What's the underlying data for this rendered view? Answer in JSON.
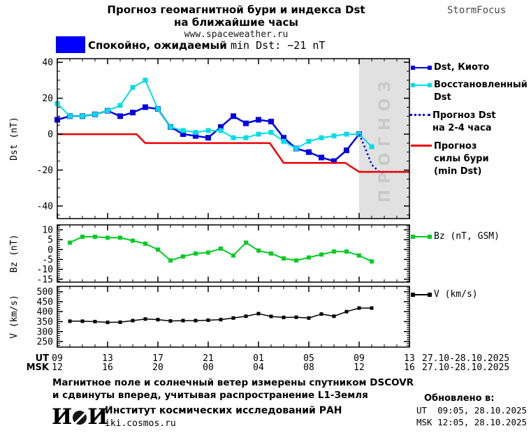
{
  "header": {
    "title_line1": "Прогноз геомагнитной бури и индекса Dst",
    "title_line2": "на ближайшие часы",
    "title_line3": "www.spaceweather.ru",
    "brand": "StormFocus",
    "status_bold": "Спокойно, ожидаемый ",
    "status_rest": "min Dst: −21 nT",
    "status_color": "#0000ff"
  },
  "legend": {
    "dst_kyoto": "Dst, Киото",
    "restored_line1": "Восстановленный",
    "restored_line2": "Dst",
    "forecast_line1": "Прогноз Dst",
    "forecast_line2": "на 2-4 часа",
    "storm_line1": "Прогноз",
    "storm_line2": "силы бури",
    "storm_line3": "(min Dst)",
    "bz": "Bz (nT, GSM)",
    "v": "V (km/s)"
  },
  "chart_data": {
    "type": "line",
    "x_unit": "hours, hourly points starting 09:00 UT 27.10.2025",
    "x_range": [
      0,
      28
    ],
    "x_major_ticks": [
      0,
      4,
      8,
      12,
      16,
      20,
      24,
      28
    ],
    "x_tick_labels_ut": [
      "09",
      "13",
      "17",
      "21",
      "01",
      "05",
      "09",
      "13"
    ],
    "x_tick_labels_msk": [
      "12",
      "16",
      "20",
      "00",
      "04",
      "08",
      "12",
      "16"
    ],
    "x_row_labels": [
      "UT",
      "MSK"
    ],
    "x_date_label": "27.10-28.10.2025",
    "forecast_region": {
      "start": 24,
      "end": 28,
      "watermark": "ПРОГНОЗ",
      "fill": "#e1e1e1",
      "text_color": "#c9c9c9"
    },
    "panels": [
      {
        "name": "dst",
        "ylabel": "Dst (nT)",
        "ylim": [
          -47,
          42
        ],
        "yticks": [
          40,
          20,
          0,
          -20,
          -40
        ],
        "minor_step": 5,
        "series": [
          {
            "name": "Dst, Киото",
            "color": "#0000e0",
            "marker": "square",
            "marker_size": 8,
            "width": 2.5,
            "x": [
              0,
              1,
              2,
              3,
              4,
              5,
              6,
              7,
              8,
              9,
              10,
              11,
              12,
              13,
              14,
              15,
              16,
              17,
              18,
              19,
              20,
              21,
              22,
              23,
              24
            ],
            "y": [
              8,
              10,
              10,
              11,
              13,
              10,
              12,
              15,
              14,
              4,
              0,
              -1,
              -2,
              4,
              10,
              6,
              8,
              7,
              -2,
              -8,
              -10,
              -13,
              -15,
              -9,
              0
            ]
          },
          {
            "name": "Восстановленный Dst",
            "color": "#00dde6",
            "marker": "square",
            "marker_size": 7,
            "width": 2,
            "x": [
              0,
              1,
              2,
              3,
              4,
              5,
              6,
              7,
              8,
              9,
              10,
              11,
              12,
              13,
              14,
              15,
              16,
              17,
              18,
              19,
              20,
              21,
              22,
              23,
              24,
              25
            ],
            "y": [
              17,
              10,
              10,
              11,
              13,
              16,
              26,
              30,
              14,
              4,
              2,
              1,
              2,
              2,
              -2,
              -2,
              0,
              1,
              -4,
              -8,
              -4,
              -2,
              -1,
              0,
              0,
              -7
            ]
          },
          {
            "name": "Прогноз Dst на 2-4 часа",
            "color": "#0000e0",
            "style": "dotted",
            "width": 2.5,
            "points": [
              [
                24,
                0
              ],
              [
                24.5,
                -8
              ],
              [
                25,
                -17
              ],
              [
                25.6,
                -21
              ],
              [
                28,
                -21
              ]
            ]
          },
          {
            "name": "Прогноз силы бури (min Dst)",
            "color": "#ee0000",
            "width": 2.5,
            "points": [
              [
                0,
                0
              ],
              [
                6.3,
                0
              ],
              [
                7,
                -5
              ],
              [
                16.9,
                -5
              ],
              [
                18,
                -16
              ],
              [
                22.9,
                -16
              ],
              [
                24,
                -21
              ],
              [
                28,
                -21
              ]
            ]
          }
        ]
      },
      {
        "name": "bz",
        "ylabel": "Bz (nT)",
        "ylim": [
          -16.5,
          12.5
        ],
        "yticks": [
          10,
          5,
          0,
          -5,
          -10,
          -15
        ],
        "minor_step": 1,
        "series": [
          {
            "name": "Bz (nT, GSM)",
            "color": "#00cc22",
            "marker": "square",
            "marker_size": 6,
            "width": 2,
            "x": [
              1,
              2,
              3,
              4,
              5,
              6,
              7,
              8,
              9,
              10,
              11,
              12,
              13,
              14,
              15,
              16,
              17,
              18,
              19,
              20,
              21,
              22,
              23,
              24,
              25
            ],
            "y": [
              3.5,
              6.5,
              6.5,
              6,
              6,
              4.5,
              3,
              0,
              -5.5,
              -3.5,
              -2,
              -1.5,
              0.5,
              -3,
              3.5,
              -0.5,
              -2,
              -4.5,
              -5.5,
              -4,
              -2.5,
              -1,
              -1,
              -3,
              -6
            ]
          }
        ]
      },
      {
        "name": "v",
        "ylabel": "V (km/s)",
        "ylim": [
          222,
          527
        ],
        "yticks": [
          500,
          450,
          400,
          350,
          300,
          250
        ],
        "minor_step": 10,
        "series": [
          {
            "name": "V (km/s)",
            "color": "#000000",
            "marker": "square",
            "marker_size": 5,
            "width": 1.5,
            "x": [
              1,
              2,
              3,
              4,
              5,
              6,
              7,
              8,
              9,
              10,
              11,
              12,
              13,
              14,
              15,
              16,
              17,
              18,
              19,
              20,
              21,
              22,
              23,
              24,
              25
            ],
            "y": [
              352,
              352,
              350,
              346,
              347,
              355,
              363,
              360,
              353,
              355,
              355,
              357,
              360,
              368,
              377,
              390,
              376,
              371,
              372,
              368,
              388,
              377,
              400,
              418,
              418
            ]
          }
        ]
      }
    ]
  },
  "footer": {
    "note_line1": "Магнитное поле и солнечный ветер измерены спутником DSCOVR",
    "note_line2": "и сдвинуты вперед, учитывая распространение L1-Земля",
    "logo_text": "ИКИ",
    "institute": "Институт космических исследований РАН",
    "site": "iki.cosmos.ru",
    "updated_title": "Обновлено в:",
    "updated_ut": "UT  09:05, 28.10.2025",
    "updated_msk": "MSK 12:05, 28.10.2025"
  }
}
